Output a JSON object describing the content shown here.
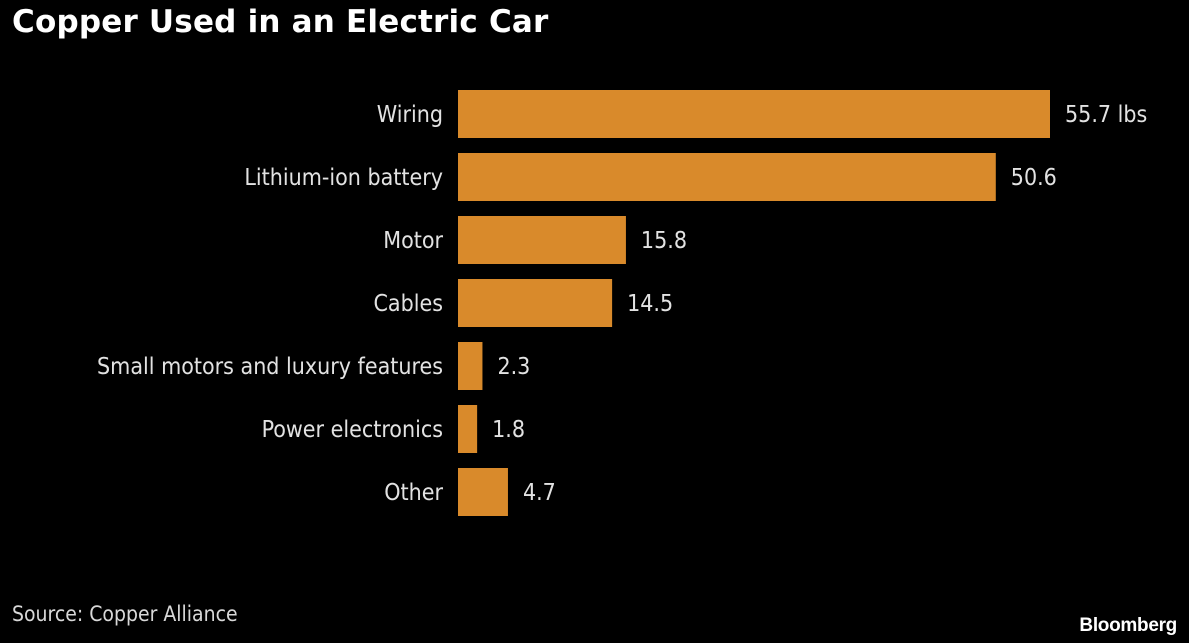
{
  "chart_data": {
    "type": "bar",
    "orientation": "horizontal",
    "title": "Copper Used in an Electric Car",
    "categories": [
      "Wiring",
      "Lithium-ion battery",
      "Motor",
      "Cables",
      "Small motors and luxury features",
      "Power electronics",
      "Other"
    ],
    "values": [
      55.7,
      50.6,
      15.8,
      14.5,
      2.3,
      1.8,
      4.7
    ],
    "value_labels": [
      "55.7 lbs",
      "50.6",
      "15.8",
      "14.5",
      "2.3",
      "1.8",
      "4.7"
    ],
    "unit": "lbs",
    "xlabel": "",
    "ylabel": "",
    "xlim": [
      0,
      55.7
    ],
    "grid": false,
    "legend": "none",
    "bar_color": "#d98a2b",
    "source": "Source: Copper Alliance",
    "brand": "Bloomberg"
  }
}
